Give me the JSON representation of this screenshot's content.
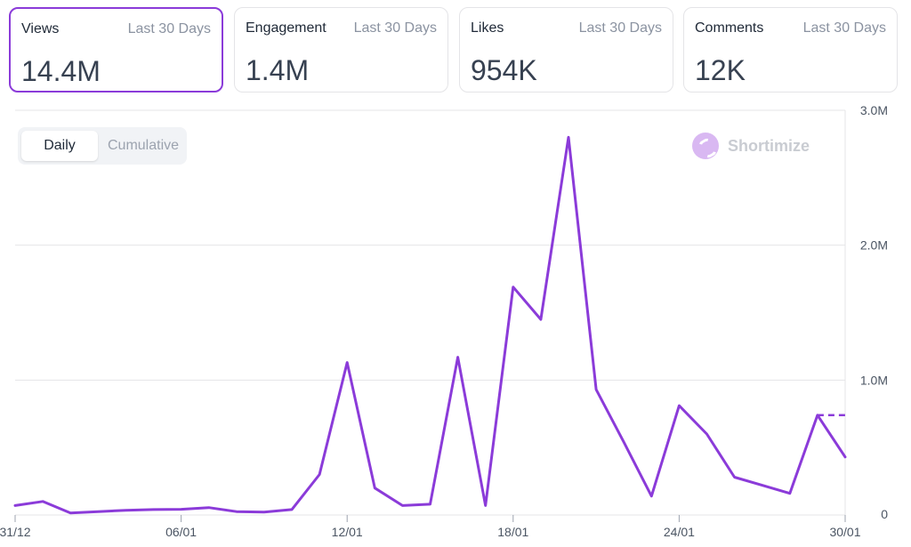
{
  "metrics": [
    {
      "label": "Views",
      "period": "Last 30 Days",
      "value": "14.4M",
      "selected": true
    },
    {
      "label": "Engagement",
      "period": "Last 30 Days",
      "value": "1.4M",
      "selected": false
    },
    {
      "label": "Likes",
      "period": "Last 30 Days",
      "value": "954K",
      "selected": false
    },
    {
      "label": "Comments",
      "period": "Last 30 Days",
      "value": "12K",
      "selected": false
    }
  ],
  "toggle": {
    "daily": "Daily",
    "cumulative": "Cumulative",
    "active": "daily"
  },
  "brand": {
    "name": "Shortimize",
    "icon": "shortimize-logo-icon"
  },
  "colors": {
    "accent": "#8b3bd9",
    "grid": "#e4e4e7",
    "axis_text": "#4b5563"
  },
  "chart_data": {
    "type": "line",
    "series": [
      {
        "name": "Views",
        "values": [
          70000,
          100000,
          15000,
          25000,
          35000,
          40000,
          42000,
          55000,
          25000,
          22000,
          40000,
          300000,
          1130000,
          200000,
          70000,
          80000,
          1170000,
          70000,
          1690000,
          1450000,
          2800000,
          930000,
          540000,
          140000,
          810000,
          600000,
          280000,
          220000,
          160000,
          740000,
          430000
        ]
      }
    ],
    "x_tick_labels": [
      "31/12",
      "06/01",
      "12/01",
      "18/01",
      "24/01",
      "30/01"
    ],
    "x_tick_index": [
      0,
      6,
      12,
      18,
      24,
      30
    ],
    "y_tick_labels": [
      "0",
      "1.0M",
      "2.0M",
      "3.0M"
    ],
    "y_tick_values": [
      0,
      1000000,
      2000000,
      3000000
    ],
    "ylim": [
      0,
      3000000
    ],
    "dashed_level": 740000,
    "y_axis_position": "right"
  }
}
